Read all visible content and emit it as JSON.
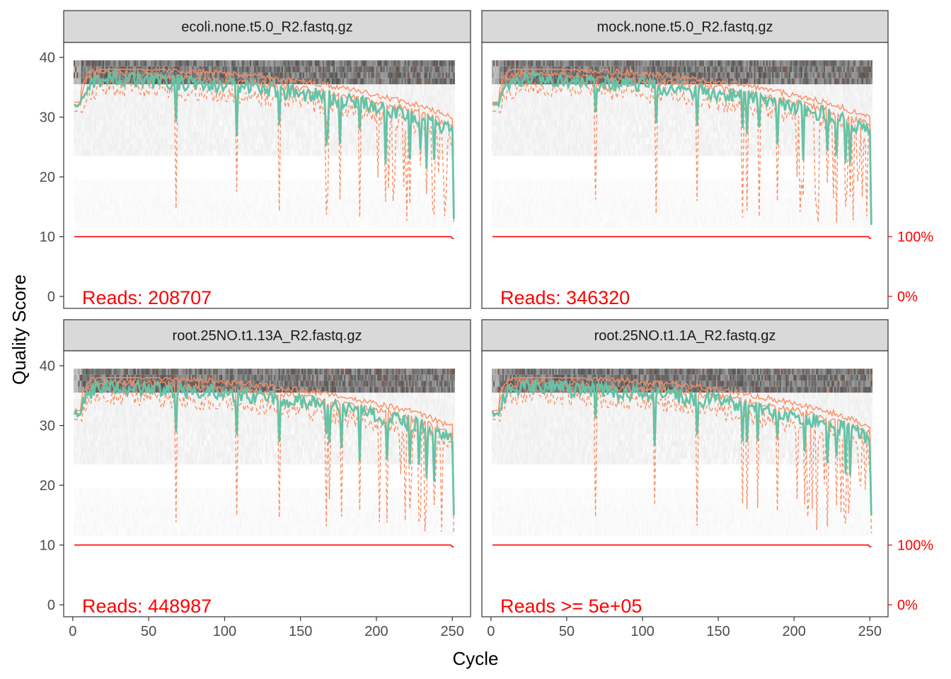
{
  "chart_data": {
    "type": "line",
    "xlabel": "Cycle",
    "ylabel": "Quality Score",
    "xlim": [
      -6,
      262
    ],
    "ylim": [
      -2,
      42.5
    ],
    "x_ticks": [
      "0",
      "50",
      "100",
      "150",
      "200",
      "250"
    ],
    "y_ticks": [
      "0",
      "10",
      "20",
      "30",
      "40"
    ],
    "cumulative_axis_ticks": [
      "100%",
      "0%"
    ],
    "grid": false,
    "facets": [
      {
        "title": "ecoli.none.t5.0_R2.fastq.gz",
        "reads_label": "Reads:  208707",
        "show_right_axis": false,
        "seed": 11,
        "tail_drop": 13
      },
      {
        "title": "mock.none.t5.0_R2.fastq.gz",
        "reads_label": "Reads:  346320",
        "show_right_axis": true,
        "seed": 23,
        "tail_drop": 12
      },
      {
        "title": "root.25NO.t1.13A_R2.fastq.gz",
        "reads_label": "Reads:  448987",
        "show_right_axis": false,
        "seed": 37,
        "tail_drop": 15
      },
      {
        "title": "root.25NO.t1.1A_R2.fastq.gz",
        "reads_label": "Reads >=  5e+05",
        "show_right_axis": true,
        "seed": 51,
        "tail_drop": 15
      }
    ],
    "series_colors": {
      "mean": "#66c2a5",
      "quartiles": "#fc8d62",
      "cumulative": "#ff0000"
    },
    "cycles": 251,
    "mean_quality_profile": {
      "x": [
        1,
        5,
        10,
        20,
        30,
        40,
        50,
        60,
        70,
        80,
        90,
        100,
        110,
        120,
        130,
        140,
        150,
        160,
        170,
        180,
        190,
        200,
        210,
        220,
        230,
        240,
        250
      ],
      "y": [
        31.5,
        32.5,
        35.5,
        36.5,
        36.5,
        36.3,
        36.2,
        36,
        35.8,
        35.6,
        35.5,
        35.3,
        35.1,
        34.9,
        34.6,
        34.3,
        34,
        33.6,
        33.2,
        32.7,
        32.2,
        31.7,
        31.1,
        30.5,
        29.8,
        28.8,
        27.8
      ]
    },
    "cumulative_fraction": {
      "start": 1.0,
      "drops_near_cycle": 251
    }
  }
}
